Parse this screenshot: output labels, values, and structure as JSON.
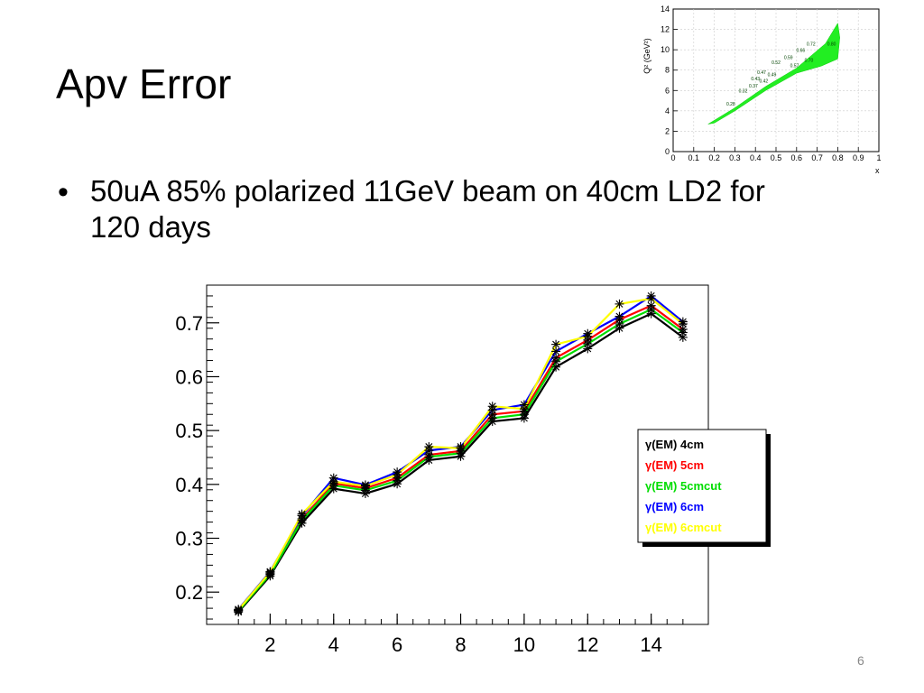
{
  "slide": {
    "title": "Apv Error",
    "bullet": "50uA 85% polarized 11GeV beam on 40cm LD2 for 120 days",
    "page_number": "6"
  },
  "inset": {
    "ylabel": "Q² (GeV²)",
    "xlabel": "x",
    "x_ticks": [
      "0",
      "0.1",
      "0.2",
      "0.3",
      "0.4",
      "0.5",
      "0.6",
      "0.7",
      "0.8",
      "0.9",
      "1"
    ],
    "y_ticks": [
      "0",
      "2",
      "4",
      "6",
      "8",
      "10",
      "12",
      "14"
    ],
    "annotations": [
      {
        "text": "0.28",
        "x": 0.28,
        "y": 4.5
      },
      {
        "text": "0.32",
        "x": 0.34,
        "y": 5.8
      },
      {
        "text": "0.37",
        "x": 0.39,
        "y": 6.3
      },
      {
        "text": "0.42",
        "x": 0.44,
        "y": 6.8
      },
      {
        "text": "0.43",
        "x": 0.4,
        "y": 7.0
      },
      {
        "text": "0.47",
        "x": 0.43,
        "y": 7.6
      },
      {
        "text": "0.49",
        "x": 0.48,
        "y": 7.4
      },
      {
        "text": "0.52",
        "x": 0.5,
        "y": 8.6
      },
      {
        "text": "0.57",
        "x": 0.59,
        "y": 8.3
      },
      {
        "text": "0.59",
        "x": 0.56,
        "y": 9.1
      },
      {
        "text": "0.66",
        "x": 0.62,
        "y": 9.8
      },
      {
        "text": "0.70",
        "x": 0.66,
        "y": 8.8
      },
      {
        "text": "0.72",
        "x": 0.67,
        "y": 10.4
      },
      {
        "text": "0.80",
        "x": 0.77,
        "y": 10.4
      }
    ],
    "band_color": "#22ee22"
  },
  "chart_data": {
    "type": "line",
    "title": "",
    "xlabel": "",
    "ylabel": "",
    "x": [
      1,
      2,
      3,
      4,
      5,
      6,
      7,
      8,
      9,
      10,
      11,
      12,
      13,
      14,
      15
    ],
    "xlim": [
      0,
      15.8
    ],
    "ylim": [
      0.14,
      0.77
    ],
    "x_ticks": [
      2,
      4,
      6,
      8,
      10,
      12,
      14
    ],
    "y_ticks": [
      0.2,
      0.3,
      0.4,
      0.5,
      0.6,
      0.7
    ],
    "x_tick_labels": [
      "2",
      "4",
      "6",
      "8",
      "10",
      "12",
      "14"
    ],
    "y_tick_labels": [
      "0.2",
      "0.3",
      "0.4",
      "0.5",
      "0.6",
      "0.7"
    ],
    "marker": "asterisk",
    "legend_position": "right",
    "series": [
      {
        "name": "γ(EM) 4cm",
        "color": "#000000",
        "values": [
          0.163,
          0.23,
          0.328,
          0.392,
          0.383,
          0.401,
          0.445,
          0.452,
          0.517,
          0.523,
          0.618,
          0.652,
          0.69,
          0.717,
          0.673
        ]
      },
      {
        "name": "γ(EM) 5cm",
        "color": "#ff0000",
        "values": [
          0.166,
          0.235,
          0.336,
          0.402,
          0.393,
          0.412,
          0.455,
          0.462,
          0.53,
          0.536,
          0.635,
          0.668,
          0.706,
          0.732,
          0.688
        ]
      },
      {
        "name": "γ(EM) 5cmcut",
        "color": "#00dd00",
        "values": [
          0.165,
          0.233,
          0.333,
          0.398,
          0.389,
          0.407,
          0.451,
          0.458,
          0.523,
          0.53,
          0.628,
          0.661,
          0.698,
          0.725,
          0.682
        ]
      },
      {
        "name": "γ(EM) 6cm",
        "color": "#0000ff",
        "values": [
          0.168,
          0.238,
          0.342,
          0.412,
          0.399,
          0.423,
          0.463,
          0.47,
          0.538,
          0.548,
          0.647,
          0.68,
          0.712,
          0.75,
          0.702
        ]
      },
      {
        "name": "γ(EM) 6cmcut",
        "color": "#ffff00",
        "values": [
          0.167,
          0.237,
          0.345,
          0.405,
          0.397,
          0.418,
          0.47,
          0.467,
          0.545,
          0.54,
          0.66,
          0.675,
          0.735,
          0.745,
          0.698
        ]
      }
    ]
  }
}
